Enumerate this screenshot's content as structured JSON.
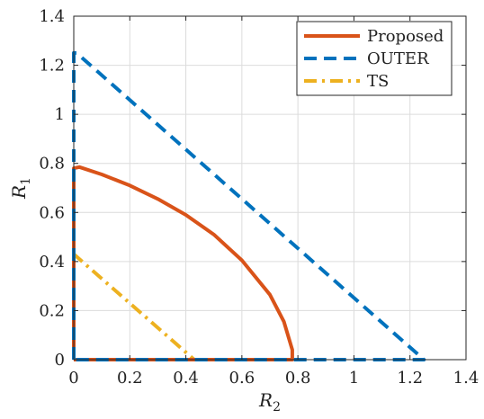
{
  "chart_data": {
    "type": "line",
    "title": "",
    "xlabel": "R",
    "xlabel_sub": "2",
    "ylabel": "R",
    "ylabel_sub": "1",
    "xlim": [
      0,
      1.4
    ],
    "ylim": [
      0,
      1.4
    ],
    "xticks": [
      0,
      0.2,
      0.4,
      0.6,
      0.8,
      1,
      1.2,
      1.4
    ],
    "xtick_labels": [
      "0",
      "0.2",
      "0.4",
      "0.6",
      "0.8",
      "1",
      "1.2",
      "1.4"
    ],
    "yticks": [
      0,
      0.2,
      0.4,
      0.6,
      0.8,
      1,
      1.2,
      1.4
    ],
    "ytick_labels": [
      "0",
      "0.2",
      "0.4",
      "0.6",
      "0.8",
      "1",
      "1.2",
      "1.4"
    ],
    "grid": true,
    "legend": {
      "placement": "top-right"
    },
    "series": [
      {
        "name": "Proposed",
        "color": "#d95319",
        "style": "solid",
        "x": [
          0,
          0,
          0.02,
          0.1,
          0.2,
          0.3,
          0.4,
          0.5,
          0.6,
          0.7,
          0.75,
          0.78,
          0.78,
          0
        ],
        "y": [
          0,
          0.78,
          0.785,
          0.755,
          0.71,
          0.655,
          0.59,
          0.51,
          0.405,
          0.265,
          0.155,
          0.04,
          0,
          0
        ]
      },
      {
        "name": "OUTER",
        "color": "#0072bd",
        "style": "dashed",
        "x": [
          0,
          0,
          0.01,
          1.25,
          0
        ],
        "y": [
          0,
          1.25,
          1.25,
          0,
          0
        ]
      },
      {
        "name": "TS",
        "color": "#edb120",
        "style": "dashdot",
        "x": [
          0,
          0,
          0.43,
          0
        ],
        "y": [
          0,
          0.43,
          0,
          0
        ]
      }
    ]
  }
}
